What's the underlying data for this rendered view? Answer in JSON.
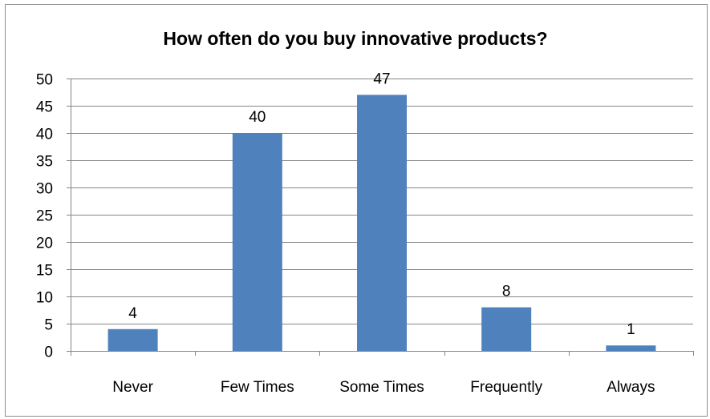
{
  "chart_data": {
    "type": "bar",
    "title": "How often do you buy innovative products?",
    "categories": [
      "Never",
      "Few Times",
      "Some Times",
      "Frequently",
      "Always"
    ],
    "values": [
      4,
      40,
      47,
      8,
      1
    ],
    "data_labels": [
      "4",
      "40",
      "47",
      "8",
      "1"
    ],
    "xlabel": "",
    "ylabel": "",
    "ylim": [
      0,
      50
    ],
    "yticks": [
      0,
      5,
      10,
      15,
      20,
      25,
      30,
      35,
      40,
      45,
      50
    ],
    "grid": true,
    "legend": "none",
    "bar_color": "#4f81bd",
    "gridline_color": "#868686"
  }
}
